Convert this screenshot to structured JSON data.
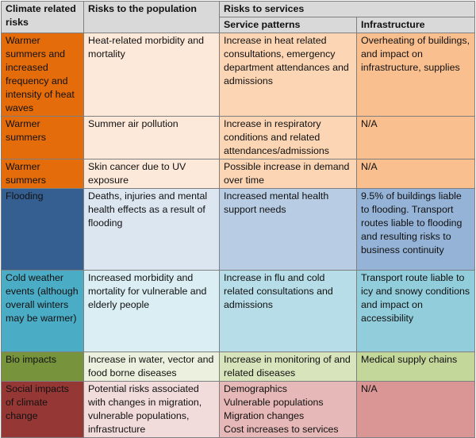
{
  "headers": {
    "climate": "Climate related risks",
    "population": "Risks to the population",
    "services": "Risks to services",
    "service_patterns": "Service patterns",
    "infrastructure": "Infrastructure"
  },
  "rows": [
    {
      "climate": "Warmer summers and increased frequency and intensity of heat waves",
      "population": "Heat-related morbidity and mortality",
      "service_patterns": "Increase in heat related consultations, emergency department attendances and admissions",
      "infrastructure": "Overheating of buildings, and impact on infrastructure, supplies"
    },
    {
      "climate": "Warmer summers",
      "population": "Summer air pollution",
      "service_patterns": "Increase in respiratory conditions and related attendances/admissions",
      "infrastructure": "N/A"
    },
    {
      "climate": "Warmer summers",
      "population": "Skin cancer due to UV exposure",
      "service_patterns": "Possible increase in demand over time",
      "infrastructure": "N/A"
    },
    {
      "climate": "Flooding",
      "population": "Deaths, injuries and mental health effects as a result of flooding",
      "service_patterns": "Increased mental health support needs",
      "infrastructure": "9.5% of buildings liable to flooding. Transport routes liable to flooding and resulting risks to business continuity"
    },
    {
      "climate": "Cold weather events (although overall winters may be warmer)",
      "population": "Increased morbidity and mortality for vulnerable and elderly people",
      "service_patterns": "Increase in flu and cold related consultations and admissions",
      "infrastructure": "Transport route liable to icy and snowy conditions and impact on accessibility"
    },
    {
      "climate": "Bio impacts",
      "population": "Increase in water, vector and food borne diseases",
      "service_patterns": "Increase in monitoring of and related diseases",
      "infrastructure": "Medical supply chains"
    },
    {
      "climate": "Social impacts of climate change",
      "population": "Potential risks associated with changes in migration, vulnerable populations, infrastructure",
      "service_patterns_lines": [
        "Demographics",
        "Vulnerable populations",
        "Migration changes",
        "Cost increases to services"
      ],
      "infrastructure": "N/A"
    }
  ]
}
